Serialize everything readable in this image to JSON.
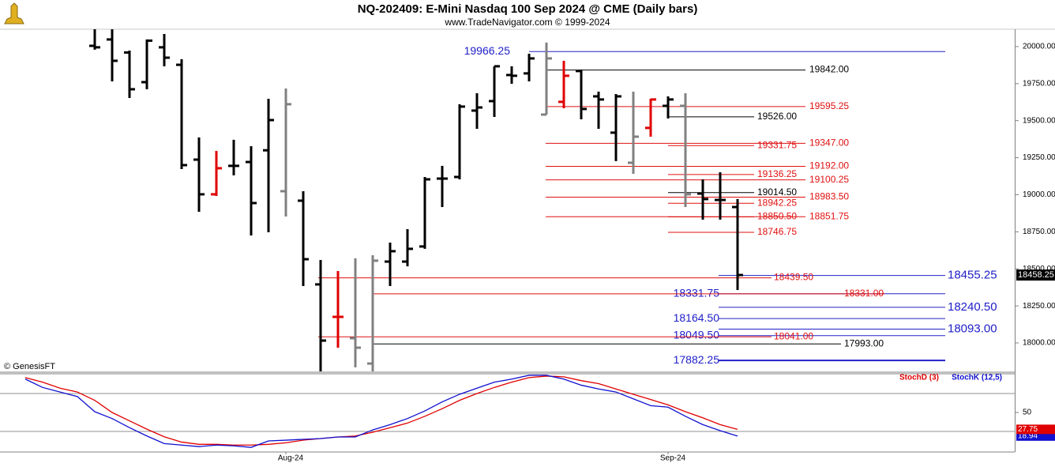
{
  "chart_data": [
    {
      "type": "ohlc",
      "title": "NQ-202409:  E-Mini Nasdaq 100 Sep 2024 @ CME  (Daily bars)",
      "subtitle": "www.TradeNavigator.com © 1999-2024",
      "watermark": "© GenesisFT",
      "categories": [
        null,
        null,
        null,
        null,
        null,
        null,
        null,
        null,
        null,
        null,
        null,
        null,
        null,
        null,
        null,
        "Aug-24",
        null,
        null,
        null,
        null,
        null,
        null,
        null,
        null,
        null,
        null,
        null,
        null,
        null,
        null,
        null,
        null,
        null,
        null,
        null,
        null,
        null,
        "Sep-24",
        null,
        null,
        null,
        null
      ],
      "open": [
        null,
        null,
        null,
        null,
        20005,
        20048,
        19960,
        19760,
        19995,
        19877,
        19237,
        19003,
        19195,
        19221,
        19300,
        19024,
        18960,
        18395,
        18176,
        18032,
        17861,
        18549,
        18549,
        18651,
        19109,
        19120,
        19568,
        19632,
        19808,
        19819,
        19541,
        19627,
        19835,
        19664,
        19419,
        19216,
        19451,
        19600,
        19600,
        19008,
        18965,
        18917
      ],
      "high": [
        null,
        null,
        null,
        null,
        20117,
        20117,
        19973,
        20048,
        20085,
        19915,
        19387,
        19296,
        19371,
        19328,
        19648,
        19717,
        19024,
        18560,
        18485,
        18571,
        18592,
        18677,
        18768,
        19120,
        19195,
        19611,
        19685,
        19867,
        19867,
        19952,
        20027,
        19904,
        19845,
        19696,
        19680,
        19696,
        19648,
        19664,
        19685,
        19104,
        19152,
        18971
      ],
      "low": [
        null,
        null,
        null,
        null,
        19979,
        19765,
        19653,
        19712,
        19867,
        19173,
        18885,
        18992,
        19131,
        18725,
        18747,
        18853,
        18384,
        17808,
        17968,
        17835,
        17808,
        18384,
        18517,
        18635,
        18917,
        19104,
        19445,
        19525,
        19749,
        19765,
        19541,
        19584,
        19509,
        19445,
        19227,
        19141,
        19392,
        19515,
        18917,
        18832,
        18832,
        18357
      ],
      "close": [
        null,
        null,
        null,
        null,
        19995,
        19904,
        19712,
        20040,
        19925,
        19200,
        19003,
        19179,
        19195,
        18944,
        19504,
        19611,
        18565,
        18016,
        18176,
        17968,
        18555,
        18619,
        18635,
        19104,
        19109,
        19595,
        19589,
        19867,
        19803,
        19920,
        19920,
        19803,
        19579,
        19643,
        19664,
        19392,
        19643,
        19643,
        19003,
        18971,
        18965,
        18458.25
      ],
      "colors": [
        "#000000",
        "#000000",
        "#000000",
        "#000000",
        "#000000",
        "#000000",
        "#000000",
        "#000000",
        "#000000",
        "#000000",
        "#000000",
        "#e00000",
        "#000000",
        "#000000",
        "#000000",
        "#808080",
        "#000000",
        "#000000",
        "#e00000",
        "#808080",
        "#808080",
        "#000000",
        "#000000",
        "#000000",
        "#000000",
        "#000000",
        "#000000",
        "#000000",
        "#000000",
        "#000000",
        "#808080",
        "#e00000",
        "#000000",
        "#000000",
        "#000000",
        "#808080",
        "#e00000",
        "#000000",
        "#808080",
        "#000000",
        "#000000",
        "#000000"
      ],
      "ylim": [
        17808,
        20117
      ],
      "yticks": [
        {
          "value": 18000,
          "label": "18000.00"
        },
        {
          "value": 18250,
          "label": "18250.00"
        },
        {
          "value": 18500,
          "label": "18500.00"
        },
        {
          "value": 18750,
          "label": "18750.00"
        },
        {
          "value": 19000,
          "label": "19000.00"
        },
        {
          "value": 19250,
          "label": "19250.00"
        },
        {
          "value": 19500,
          "label": "19500.00"
        },
        {
          "value": 19750,
          "label": "19750.00"
        },
        {
          "value": 20000,
          "label": "20000.00"
        }
      ],
      "levels": [
        {
          "value": 19966.25,
          "label": "19966.25",
          "color": "#2020c8"
        },
        {
          "value": 19842,
          "label": "19842.00",
          "color": "#000000"
        },
        {
          "value": 19595.25,
          "label": "19595.25",
          "color": "#e01010"
        },
        {
          "value": 19526,
          "label": "19526.00",
          "color": "#000000"
        },
        {
          "value": 19347,
          "label": "19347.00",
          "color": "#e01010"
        },
        {
          "value": 19331.75,
          "label": "19331.75",
          "color": "#e01010"
        },
        {
          "value": 19192,
          "label": "19192.00",
          "color": "#e01010"
        },
        {
          "value": 19136.25,
          "label": "19136.25",
          "color": "#e01010"
        },
        {
          "value": 19100.25,
          "label": "19100.25",
          "color": "#e01010"
        },
        {
          "value": 19014.5,
          "label": "19014.50",
          "color": "#000000"
        },
        {
          "value": 18983.5,
          "label": "18983.50",
          "color": "#e01010"
        },
        {
          "value": 18942.25,
          "label": "18942.25",
          "color": "#e01010"
        },
        {
          "value": 18850.5,
          "label": "18850.50",
          "color": "#e01010"
        },
        {
          "value": 18851.75,
          "label": "18851.75",
          "color": "#e01010"
        },
        {
          "value": 18746.75,
          "label": "18746.75",
          "color": "#e01010"
        },
        {
          "value": 18455.25,
          "label": "18455.25",
          "color": "#2020c8"
        },
        {
          "value": 18439.5,
          "label": "18439.50",
          "color": "#e01010"
        },
        {
          "value": 18331.75,
          "label": "18331.75",
          "color": "#2020c8"
        },
        {
          "value": 18331,
          "label": "18331.00",
          "color": "#e01010"
        },
        {
          "value": 18240.5,
          "label": "18240.50",
          "color": "#2020c8"
        },
        {
          "value": 18164.5,
          "label": "18164.50",
          "color": "#2020c8"
        },
        {
          "value": 18093,
          "label": "18093.00",
          "color": "#2020c8"
        },
        {
          "value": 18049.5,
          "label": "18049.50",
          "color": "#2020c8"
        },
        {
          "value": 18041,
          "label": "18041.00",
          "color": "#e01010"
        },
        {
          "value": 17993,
          "label": "17993.00",
          "color": "#000000"
        },
        {
          "value": 17882.25,
          "label": "17882.25",
          "color": "#2020c8"
        }
      ]
    },
    {
      "type": "line",
      "series": [
        {
          "name": "StochD (3)",
          "color": "#e00000",
          "values": [
            96,
            90,
            82,
            77,
            66,
            50,
            39,
            28,
            18,
            11,
            8,
            8,
            7,
            7,
            8,
            10,
            13.5,
            15.6,
            17.7,
            19,
            24,
            30,
            36,
            45,
            55,
            66,
            75,
            83,
            90,
            96,
            98,
            97,
            92,
            88,
            81,
            74,
            67,
            60,
            51,
            43,
            34,
            27.75
          ]
        },
        {
          "name": "StochK (12,5)",
          "color": "#1010d0",
          "values": [
            94,
            83,
            77,
            71,
            51,
            42,
            30,
            19,
            9,
            7,
            5,
            7,
            6,
            4,
            12.5,
            13.5,
            14.6,
            15.6,
            17.7,
            17.7,
            27,
            34,
            42,
            52,
            64,
            74,
            82,
            90,
            94,
            99,
            99,
            94,
            86,
            81,
            77,
            68,
            59,
            57,
            45,
            34,
            26,
            18.94
          ]
        }
      ],
      "ylim": [
        0,
        100
      ],
      "yticks": [
        50
      ],
      "reference_lines": [
        75,
        25
      ]
    }
  ]
}
